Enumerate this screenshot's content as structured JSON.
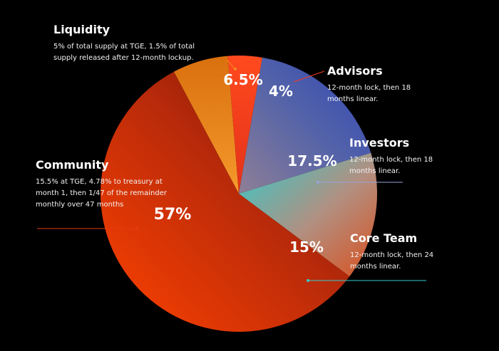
{
  "chart_data": {
    "type": "pie",
    "title": "",
    "slices": [
      {
        "name": "Liquidity",
        "value": 6.5,
        "label": "6.5%",
        "description": "5% of total supply at TGE, 1.5% of total supply released after 12-month lockup.",
        "color": "#f58a1f"
      },
      {
        "name": "Advisors",
        "value": 4,
        "label": "4%",
        "description": "12-month lock, then 18 months linear.",
        "color": "#f23a1c"
      },
      {
        "name": "Investors",
        "value": 17.5,
        "label": "17.5%",
        "description": "12-month lock, then 18 months linear.",
        "color": "#3447a6"
      },
      {
        "name": "Core Team",
        "value": 15,
        "label": "15%",
        "description": "12-month lock, then 24 months linear.",
        "color": "#2ec7c9"
      },
      {
        "name": "Community",
        "value": 57,
        "label": "57%",
        "description": "15.5% at TGE, 4.78% to treasury at month 1, then 1/47 of the remainder monthly over 47 months",
        "color": "#f23a0a"
      }
    ]
  }
}
